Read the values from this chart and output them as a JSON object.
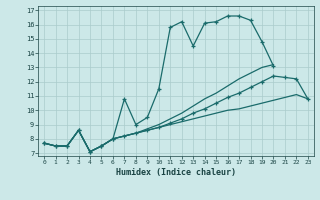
{
  "xlabel": "Humidex (Indice chaleur)",
  "bg_color": "#cce8e8",
  "grid_color": "#aacccc",
  "line_color": "#1a6b6b",
  "xlim": [
    -0.5,
    23.5
  ],
  "ylim": [
    6.8,
    17.3
  ],
  "xticks": [
    0,
    1,
    2,
    3,
    4,
    5,
    6,
    7,
    8,
    9,
    10,
    11,
    12,
    13,
    14,
    15,
    16,
    17,
    18,
    19,
    20,
    21,
    22,
    23
  ],
  "yticks": [
    7,
    8,
    9,
    10,
    11,
    12,
    13,
    14,
    15,
    16,
    17
  ],
  "series": [
    {
      "x": [
        0,
        1,
        2,
        3,
        4,
        5,
        6,
        7,
        8,
        9,
        10,
        11,
        12,
        13,
        14,
        15,
        16,
        17,
        18,
        19,
        20
      ],
      "y": [
        7.7,
        7.5,
        7.5,
        8.6,
        7.1,
        7.5,
        8.0,
        10.8,
        9.0,
        9.5,
        11.5,
        15.8,
        16.2,
        14.5,
        16.1,
        16.2,
        16.6,
        16.6,
        16.3,
        14.8,
        13.1
      ],
      "markers": true
    },
    {
      "x": [
        0,
        1,
        2,
        3,
        4,
        5,
        6,
        7,
        8,
        9,
        10,
        11,
        12,
        13,
        14,
        15,
        16,
        17,
        18,
        19,
        20,
        21,
        22,
        23
      ],
      "y": [
        7.7,
        7.5,
        7.5,
        8.6,
        7.1,
        7.5,
        8.0,
        8.2,
        8.4,
        8.6,
        8.8,
        9.0,
        9.2,
        9.4,
        9.6,
        9.8,
        10.0,
        10.1,
        10.3,
        10.5,
        10.7,
        10.9,
        11.1,
        10.8
      ],
      "markers": false
    },
    {
      "x": [
        0,
        1,
        2,
        3,
        4,
        5,
        6,
        7,
        8,
        9,
        10,
        11,
        12,
        13,
        14,
        15,
        16,
        17,
        18,
        19,
        20,
        21,
        22,
        23
      ],
      "y": [
        7.7,
        7.5,
        7.5,
        8.6,
        7.1,
        7.5,
        8.0,
        8.2,
        8.4,
        8.6,
        8.8,
        9.1,
        9.4,
        9.8,
        10.1,
        10.5,
        10.9,
        11.2,
        11.6,
        12.0,
        12.4,
        12.3,
        12.2,
        10.8
      ],
      "markers": true
    },
    {
      "x": [
        0,
        1,
        2,
        3,
        4,
        5,
        6,
        7,
        8,
        9,
        10,
        11,
        12,
        13,
        14,
        15,
        16,
        17,
        18,
        19,
        20
      ],
      "y": [
        7.7,
        7.5,
        7.5,
        8.6,
        7.1,
        7.5,
        8.0,
        8.2,
        8.4,
        8.7,
        9.0,
        9.4,
        9.8,
        10.3,
        10.8,
        11.2,
        11.7,
        12.2,
        12.6,
        13.0,
        13.2
      ],
      "markers": false
    }
  ]
}
